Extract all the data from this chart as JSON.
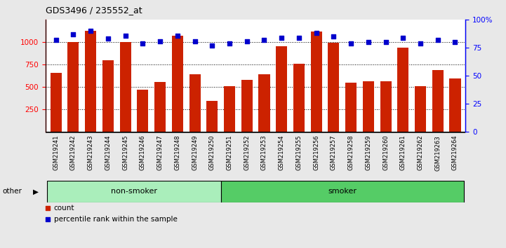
{
  "title": "GDS3496 / 235552_at",
  "categories": [
    "GSM219241",
    "GSM219242",
    "GSM219243",
    "GSM219244",
    "GSM219245",
    "GSM219246",
    "GSM219247",
    "GSM219248",
    "GSM219249",
    "GSM219250",
    "GSM219251",
    "GSM219252",
    "GSM219253",
    "GSM219254",
    "GSM219255",
    "GSM219256",
    "GSM219257",
    "GSM219258",
    "GSM219259",
    "GSM219260",
    "GSM219261",
    "GSM219262",
    "GSM219263",
    "GSM219264"
  ],
  "counts": [
    660,
    1005,
    1130,
    800,
    1005,
    465,
    555,
    1075,
    640,
    340,
    510,
    580,
    640,
    955,
    755,
    1120,
    995,
    545,
    565,
    560,
    935,
    510,
    685,
    590
  ],
  "percentiles": [
    82,
    87,
    90,
    83,
    86,
    79,
    81,
    86,
    81,
    77,
    79,
    81,
    82,
    84,
    84,
    88,
    85,
    79,
    80,
    80,
    84,
    79,
    82,
    80
  ],
  "groups": [
    {
      "label": "non-smoker",
      "start": 0,
      "end": 10,
      "color": "#aaeebb"
    },
    {
      "label": "smoker",
      "start": 10,
      "end": 24,
      "color": "#55cc66"
    }
  ],
  "other_label": "other",
  "bar_color": "#cc2200",
  "scatter_color": "#0000cc",
  "ylim_left": [
    0,
    1250
  ],
  "ylim_right": [
    0,
    100
  ],
  "yticks_left": [
    250,
    500,
    750,
    1000
  ],
  "yticks_right": [
    0,
    25,
    50,
    75,
    100
  ],
  "background_color": "#e8e8e8",
  "plot_bg_color": "#ffffff",
  "legend_count_color": "#cc2200",
  "legend_pct_color": "#0000cc"
}
